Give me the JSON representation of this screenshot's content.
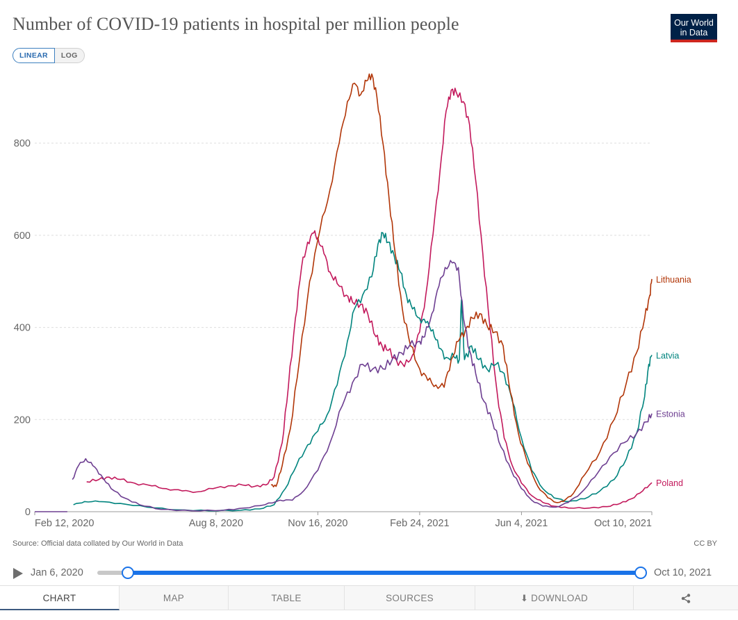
{
  "header": {
    "title": "Number of COVID-19 patients in hospital per million people",
    "logo_line1": "Our World",
    "logo_line2": "in Data",
    "scale_linear": "LINEAR",
    "scale_log": "LOG"
  },
  "footer": {
    "source": "Source: Official data collated by Our World in Data",
    "license": "CC BY"
  },
  "timeline": {
    "start_label": "Jan 6, 2020",
    "end_label": "Oct 10, 2021",
    "start_fraction": 0.0,
    "end_fraction": 1.0
  },
  "tabs": {
    "chart": "CHART",
    "map": "MAP",
    "table": "TABLE",
    "sources": "SOURCES",
    "download": "DOWNLOAD"
  },
  "chart_data": {
    "type": "line",
    "title": "Number of COVID-19 patients in hospital per million people",
    "xlabel": "",
    "ylabel": "",
    "x_range": [
      "2020-02-12",
      "2021-10-10"
    ],
    "ylim": [
      0,
      960
    ],
    "y_ticks": [
      0,
      200,
      400,
      600,
      800
    ],
    "x_ticks": [
      {
        "date": "2020-02-12",
        "label": "Feb 12, 2020"
      },
      {
        "date": "2020-08-08",
        "label": "Aug 8, 2020"
      },
      {
        "date": "2020-11-16",
        "label": "Nov 16, 2020"
      },
      {
        "date": "2021-02-24",
        "label": "Feb 24, 2021"
      },
      {
        "date": "2021-06-04",
        "label": "Jun 4, 2021"
      },
      {
        "date": "2021-10-10",
        "label": "Oct 10, 2021"
      }
    ],
    "grid": true,
    "legend": "line-end labels",
    "series": [
      {
        "name": "Poland",
        "color": "#c2185b",
        "points": [
          [
            "2020-04-03",
            65
          ],
          [
            "2020-04-15",
            70
          ],
          [
            "2020-04-25",
            75
          ],
          [
            "2020-05-06",
            70
          ],
          [
            "2020-05-20",
            62
          ],
          [
            "2020-06-06",
            56
          ],
          [
            "2020-06-20",
            50
          ],
          [
            "2020-07-06",
            45
          ],
          [
            "2020-07-20",
            43
          ],
          [
            "2020-08-05",
            50
          ],
          [
            "2020-08-20",
            56
          ],
          [
            "2020-09-03",
            58
          ],
          [
            "2020-09-15",
            55
          ],
          [
            "2020-09-26",
            58
          ],
          [
            "2020-10-04",
            75
          ],
          [
            "2020-10-12",
            150
          ],
          [
            "2020-10-18",
            270
          ],
          [
            "2020-10-25",
            420
          ],
          [
            "2020-10-31",
            530
          ],
          [
            "2020-11-06",
            585
          ],
          [
            "2020-11-12",
            605
          ],
          [
            "2020-11-16",
            595
          ],
          [
            "2020-11-22",
            560
          ],
          [
            "2020-11-28",
            520
          ],
          [
            "2020-12-05",
            495
          ],
          [
            "2020-12-14",
            470
          ],
          [
            "2020-12-20",
            455
          ],
          [
            "2020-12-28",
            450
          ],
          [
            "2021-01-04",
            430
          ],
          [
            "2021-01-12",
            380
          ],
          [
            "2021-01-18",
            360
          ],
          [
            "2021-01-24",
            350
          ],
          [
            "2021-02-01",
            330
          ],
          [
            "2021-02-09",
            315
          ],
          [
            "2021-02-17",
            340
          ],
          [
            "2021-02-24",
            390
          ],
          [
            "2021-03-02",
            470
          ],
          [
            "2021-03-09",
            600
          ],
          [
            "2021-03-16",
            740
          ],
          [
            "2021-03-22",
            870
          ],
          [
            "2021-03-27",
            915
          ],
          [
            "2021-04-01",
            910
          ],
          [
            "2021-04-08",
            890
          ],
          [
            "2021-04-14",
            840
          ],
          [
            "2021-04-20",
            720
          ],
          [
            "2021-04-27",
            560
          ],
          [
            "2021-05-04",
            400
          ],
          [
            "2021-05-11",
            260
          ],
          [
            "2021-05-18",
            160
          ],
          [
            "2021-05-26",
            100
          ],
          [
            "2021-06-04",
            62
          ],
          [
            "2021-06-14",
            35
          ],
          [
            "2021-06-25",
            20
          ],
          [
            "2021-07-06",
            12
          ],
          [
            "2021-07-20",
            8
          ],
          [
            "2021-08-10",
            8
          ],
          [
            "2021-08-27",
            11
          ],
          [
            "2021-09-09",
            18
          ],
          [
            "2021-09-20",
            28
          ],
          [
            "2021-10-01",
            45
          ],
          [
            "2021-10-10",
            63
          ]
        ]
      },
      {
        "name": "Latvia",
        "color": "#00847e",
        "points": [
          [
            "2020-03-21",
            15
          ],
          [
            "2020-04-01",
            22
          ],
          [
            "2020-04-15",
            22
          ],
          [
            "2020-05-06",
            18
          ],
          [
            "2020-06-01",
            10
          ],
          [
            "2020-07-01",
            4
          ],
          [
            "2020-08-01",
            2
          ],
          [
            "2020-09-01",
            3
          ],
          [
            "2020-09-20",
            6
          ],
          [
            "2020-10-04",
            15
          ],
          [
            "2020-10-15",
            50
          ],
          [
            "2020-10-26",
            100
          ],
          [
            "2020-11-06",
            145
          ],
          [
            "2020-11-16",
            175
          ],
          [
            "2020-11-25",
            210
          ],
          [
            "2020-12-05",
            275
          ],
          [
            "2020-12-15",
            370
          ],
          [
            "2020-12-22",
            440
          ],
          [
            "2020-12-30",
            470
          ],
          [
            "2021-01-08",
            510
          ],
          [
            "2021-01-14",
            580
          ],
          [
            "2021-01-19",
            605
          ],
          [
            "2021-01-24",
            585
          ],
          [
            "2021-01-30",
            555
          ],
          [
            "2021-02-05",
            520
          ],
          [
            "2021-02-11",
            470
          ],
          [
            "2021-02-17",
            440
          ],
          [
            "2021-02-24",
            420
          ],
          [
            "2021-03-02",
            410
          ],
          [
            "2021-03-09",
            395
          ],
          [
            "2021-03-15",
            355
          ],
          [
            "2021-03-22",
            335
          ],
          [
            "2021-03-30",
            335
          ],
          [
            "2021-04-04",
            330
          ],
          [
            "2021-04-06",
            460
          ],
          [
            "2021-04-09",
            330
          ],
          [
            "2021-04-16",
            360
          ],
          [
            "2021-04-23",
            330
          ],
          [
            "2021-05-01",
            310
          ],
          [
            "2021-05-10",
            320
          ],
          [
            "2021-05-18",
            300
          ],
          [
            "2021-05-26",
            240
          ],
          [
            "2021-06-04",
            160
          ],
          [
            "2021-06-14",
            90
          ],
          [
            "2021-06-25",
            50
          ],
          [
            "2021-07-06",
            30
          ],
          [
            "2021-07-20",
            22
          ],
          [
            "2021-08-05",
            28
          ],
          [
            "2021-08-20",
            45
          ],
          [
            "2021-09-03",
            70
          ],
          [
            "2021-09-15",
            115
          ],
          [
            "2021-09-25",
            170
          ],
          [
            "2021-10-03",
            250
          ],
          [
            "2021-10-07",
            320
          ],
          [
            "2021-10-10",
            340
          ]
        ]
      },
      {
        "name": "Lithuania",
        "color": "#b13507",
        "points": [
          [
            "2020-10-01",
            58
          ],
          [
            "2020-10-06",
            55
          ],
          [
            "2020-10-12",
            100
          ],
          [
            "2020-10-20",
            180
          ],
          [
            "2020-10-29",
            330
          ],
          [
            "2020-11-08",
            500
          ],
          [
            "2020-11-18",
            610
          ],
          [
            "2020-11-28",
            700
          ],
          [
            "2020-12-07",
            800
          ],
          [
            "2020-12-15",
            890
          ],
          [
            "2020-12-22",
            930
          ],
          [
            "2020-12-28",
            905
          ],
          [
            "2021-01-03",
            935
          ],
          [
            "2021-01-08",
            950
          ],
          [
            "2021-01-13",
            900
          ],
          [
            "2021-01-19",
            800
          ],
          [
            "2021-01-25",
            680
          ],
          [
            "2021-01-31",
            560
          ],
          [
            "2021-02-07",
            440
          ],
          [
            "2021-02-15",
            360
          ],
          [
            "2021-02-24",
            310
          ],
          [
            "2021-03-04",
            285
          ],
          [
            "2021-03-12",
            275
          ],
          [
            "2021-03-20",
            270
          ],
          [
            "2021-03-27",
            330
          ],
          [
            "2021-04-03",
            370
          ],
          [
            "2021-04-10",
            395
          ],
          [
            "2021-04-17",
            420
          ],
          [
            "2021-04-24",
            430
          ],
          [
            "2021-05-01",
            405
          ],
          [
            "2021-05-09",
            390
          ],
          [
            "2021-05-17",
            360
          ],
          [
            "2021-05-24",
            260
          ],
          [
            "2021-06-01",
            170
          ],
          [
            "2021-06-10",
            105
          ],
          [
            "2021-06-20",
            55
          ],
          [
            "2021-06-30",
            30
          ],
          [
            "2021-07-08",
            20
          ],
          [
            "2021-07-15",
            22
          ],
          [
            "2021-07-25",
            40
          ],
          [
            "2021-08-05",
            80
          ],
          [
            "2021-08-20",
            130
          ],
          [
            "2021-09-03",
            200
          ],
          [
            "2021-09-15",
            280
          ],
          [
            "2021-09-25",
            345
          ],
          [
            "2021-10-03",
            420
          ],
          [
            "2021-10-08",
            470
          ],
          [
            "2021-10-10",
            505
          ]
        ]
      },
      {
        "name": "Estonia",
        "color": "#6d3e91",
        "points": [
          [
            "2020-03-20",
            70
          ],
          [
            "2020-03-26",
            100
          ],
          [
            "2020-04-02",
            115
          ],
          [
            "2020-04-09",
            100
          ],
          [
            "2020-04-17",
            80
          ],
          [
            "2020-04-27",
            50
          ],
          [
            "2020-05-10",
            30
          ],
          [
            "2020-05-25",
            15
          ],
          [
            "2020-06-15",
            5
          ],
          [
            "2020-07-15",
            2
          ],
          [
            "2020-08-15",
            3
          ],
          [
            "2020-09-05",
            8
          ],
          [
            "2020-09-25",
            15
          ],
          [
            "2020-10-10",
            25
          ],
          [
            "2020-10-22",
            25
          ],
          [
            "2020-11-02",
            45
          ],
          [
            "2020-11-16",
            90
          ],
          [
            "2020-11-28",
            150
          ],
          [
            "2020-12-10",
            230
          ],
          [
            "2020-12-20",
            280
          ],
          [
            "2020-12-30",
            320
          ],
          [
            "2021-01-09",
            310
          ],
          [
            "2021-01-19",
            310
          ],
          [
            "2021-01-28",
            330
          ],
          [
            "2021-02-06",
            345
          ],
          [
            "2021-02-14",
            360
          ],
          [
            "2021-02-24",
            370
          ],
          [
            "2021-03-01",
            380
          ],
          [
            "2021-03-08",
            430
          ],
          [
            "2021-03-15",
            490
          ],
          [
            "2021-03-21",
            530
          ],
          [
            "2021-03-28",
            540
          ],
          [
            "2021-04-03",
            530
          ],
          [
            "2021-04-08",
            420
          ],
          [
            "2021-04-14",
            350
          ],
          [
            "2021-04-20",
            300
          ],
          [
            "2021-04-28",
            240
          ],
          [
            "2021-05-06",
            200
          ],
          [
            "2021-05-15",
            140
          ],
          [
            "2021-05-25",
            90
          ],
          [
            "2021-06-04",
            50
          ],
          [
            "2021-06-14",
            25
          ],
          [
            "2021-06-25",
            12
          ],
          [
            "2021-07-08",
            10
          ],
          [
            "2021-07-20",
            20
          ],
          [
            "2021-08-01",
            40
          ],
          [
            "2021-08-15",
            75
          ],
          [
            "2021-08-30",
            120
          ],
          [
            "2021-09-13",
            150
          ],
          [
            "2021-09-25",
            170
          ],
          [
            "2021-10-05",
            195
          ],
          [
            "2021-10-10",
            213
          ]
        ]
      }
    ]
  }
}
